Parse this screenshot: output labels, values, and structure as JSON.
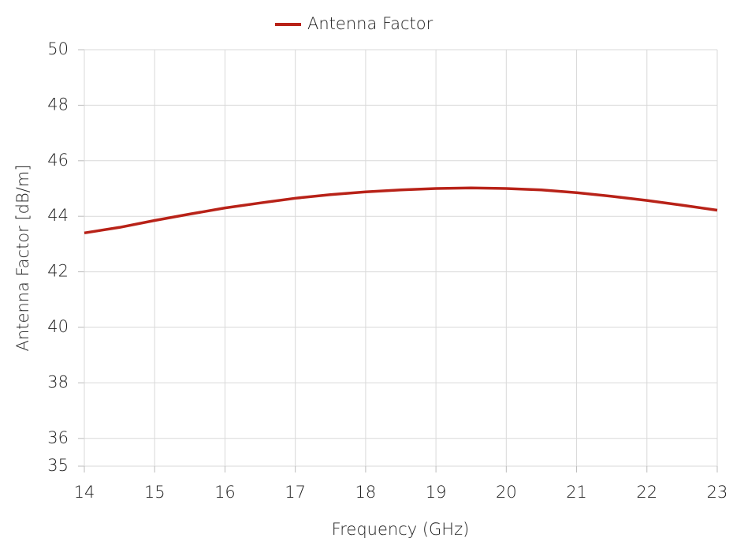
{
  "chart_data": {
    "type": "line",
    "x_label": "Frequency (GHz)",
    "y_label": "Antenna Factor [dB/m]",
    "x": [
      14,
      14.5,
      15,
      15.5,
      16,
      16.5,
      17,
      17.5,
      18,
      18.5,
      19,
      19.5,
      20,
      20.5,
      21,
      21.5,
      22,
      22.5,
      23
    ],
    "series": [
      {
        "name": "Antenna Factor",
        "color": "#b82218",
        "values": [
          43.4,
          43.6,
          43.85,
          44.08,
          44.3,
          44.48,
          44.65,
          44.78,
          44.88,
          44.95,
          45.0,
          45.02,
          45.0,
          44.95,
          44.85,
          44.72,
          44.57,
          44.4,
          44.22
        ]
      }
    ],
    "xlim": [
      14,
      23
    ],
    "xticks": [
      14,
      15,
      16,
      17,
      18,
      19,
      20,
      21,
      22,
      23
    ],
    "ylim": [
      35,
      50
    ],
    "yticks": [
      35,
      36,
      38,
      40,
      42,
      44,
      46,
      48,
      50
    ],
    "grid": true,
    "legend": "top"
  }
}
